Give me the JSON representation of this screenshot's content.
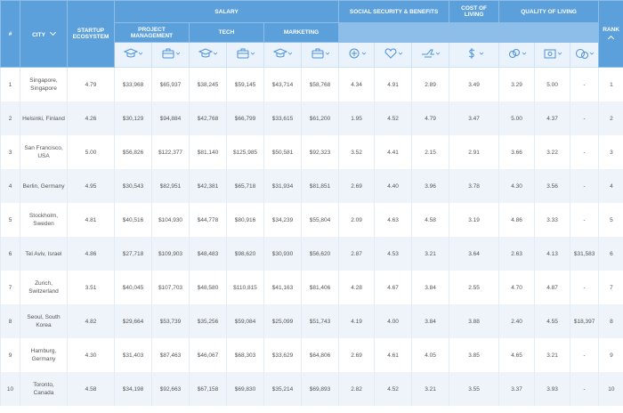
{
  "header": {
    "number": "#",
    "city": "CITY",
    "startup": "STARTUP ECOSYSTEM",
    "salary": "SALARY",
    "social": "SOCIAL SECURITY & BENEFITS",
    "cost": "COST OF LIVING",
    "quality": "QUALITY OF LIVING",
    "rank": "RANK"
  },
  "subheaders": [
    "PROJECT MANAGEMENT",
    "TECH",
    "MARKETING"
  ],
  "rows": [
    [
      "1",
      "Singapore, Singapore",
      "4.79",
      "$33,968",
      "$65,937",
      "$38,245",
      "$59,145",
      "$43,714",
      "$58,768",
      "4.34",
      "4.91",
      "2.89",
      "3.49",
      "3.29",
      "5.00",
      "-",
      "1"
    ],
    [
      "2",
      "Helsinki, Finland",
      "4.26",
      "$30,129",
      "$94,884",
      "$42,768",
      "$66,799",
      "$33,615",
      "$61,200",
      "1.95",
      "4.52",
      "4.79",
      "3.47",
      "5.00",
      "4.37",
      "-",
      "2"
    ],
    [
      "3",
      "San Francisco, USA",
      "5.00",
      "$56,826",
      "$122,377",
      "$81,140",
      "$125,985",
      "$50,581",
      "$92,323",
      "3.52",
      "4.41",
      "2.15",
      "2.91",
      "3.66",
      "3.22",
      "-",
      "3"
    ],
    [
      "4",
      "Berlin, Germany",
      "4.95",
      "$30,543",
      "$82,951",
      "$42,381",
      "$65,718",
      "$31,934",
      "$81,851",
      "2.69",
      "4.40",
      "3.96",
      "3.78",
      "4.30",
      "3.56",
      "-",
      "4"
    ],
    [
      "5",
      "Stockholm, Sweden",
      "4.81",
      "$40,516",
      "$104,930",
      "$44,778",
      "$80,916",
      "$34,239",
      "$55,804",
      "2.09",
      "4.63",
      "4.58",
      "3.19",
      "4.86",
      "3.33",
      "-",
      "5"
    ],
    [
      "6",
      "Tel Aviv, Israel",
      "4.86",
      "$27,718",
      "$109,903",
      "$48,483",
      "$98,620",
      "$30,930",
      "$56,620",
      "2.87",
      "4.53",
      "3.21",
      "3.64",
      "2.63",
      "4.13",
      "$31,583",
      "6"
    ],
    [
      "7",
      "Zurich, Switzerland",
      "3.51",
      "$40,045",
      "$107,703",
      "$48,580",
      "$110,815",
      "$41,163",
      "$81,406",
      "4.28",
      "4.67",
      "3.84",
      "2.55",
      "4.70",
      "4.87",
      "-",
      "7"
    ],
    [
      "8",
      "Seoul, South Korea",
      "4.82",
      "$29,664",
      "$53,739",
      "$35,256",
      "$59,084",
      "$25,099",
      "$51,743",
      "4.19",
      "4.00",
      "3.84",
      "3.88",
      "2.40",
      "4.55",
      "$18,397",
      "8"
    ],
    [
      "9",
      "Hamburg, Germany",
      "4.30",
      "$31,403",
      "$87,463",
      "$46,067",
      "$68,303",
      "$33,629",
      "$64,806",
      "2.69",
      "4.61",
      "4.05",
      "3.85",
      "4.65",
      "3.21",
      "-",
      "9"
    ],
    [
      "10",
      "Toronto, Canada",
      "4.58",
      "$34,198",
      "$92,663",
      "$67,158",
      "$69,830",
      "$35,214",
      "$69,893",
      "2.82",
      "4.52",
      "3.21",
      "3.55",
      "3.37",
      "3.93",
      "-",
      "10"
    ]
  ]
}
